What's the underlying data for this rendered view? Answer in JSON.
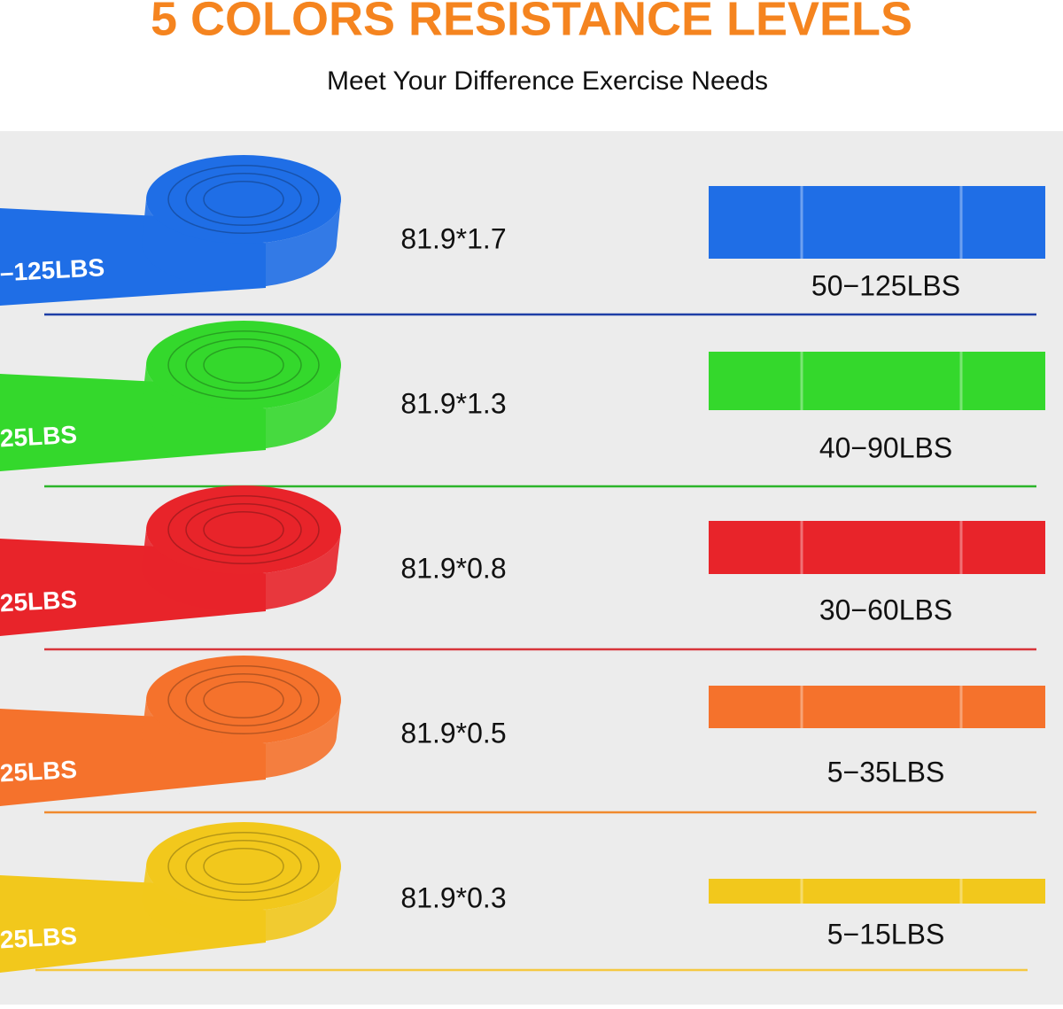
{
  "header": {
    "title": "5 COLORS RESISTANCE LEVELS",
    "subtitle": "Meet Your Difference Exercise Needs"
  },
  "rows": [
    {
      "band_text": "–125LBS",
      "size": "81.9*1.7",
      "resistance": "50−125LBS",
      "color": "#1f6ee6",
      "line_color": "#1e3ea6"
    },
    {
      "band_text": "25LBS",
      "size": "81.9*1.3",
      "resistance": "40−90LBS",
      "color": "#34d82c",
      "line_color": "#2cb52a"
    },
    {
      "band_text": "25LBS",
      "size": "81.9*0.8",
      "resistance": "30−60LBS",
      "color": "#e8242a",
      "line_color": "#d8353a"
    },
    {
      "band_text": "25LBS",
      "size": "81.9*0.5",
      "resistance": "5−35LBS",
      "color": "#f5722c",
      "line_color": "#f08a2e"
    },
    {
      "band_text": "25LBS",
      "size": "81.9*0.3",
      "resistance": "5−15LBS",
      "color": "#f2c81c",
      "line_color": "#f5c842"
    }
  ]
}
